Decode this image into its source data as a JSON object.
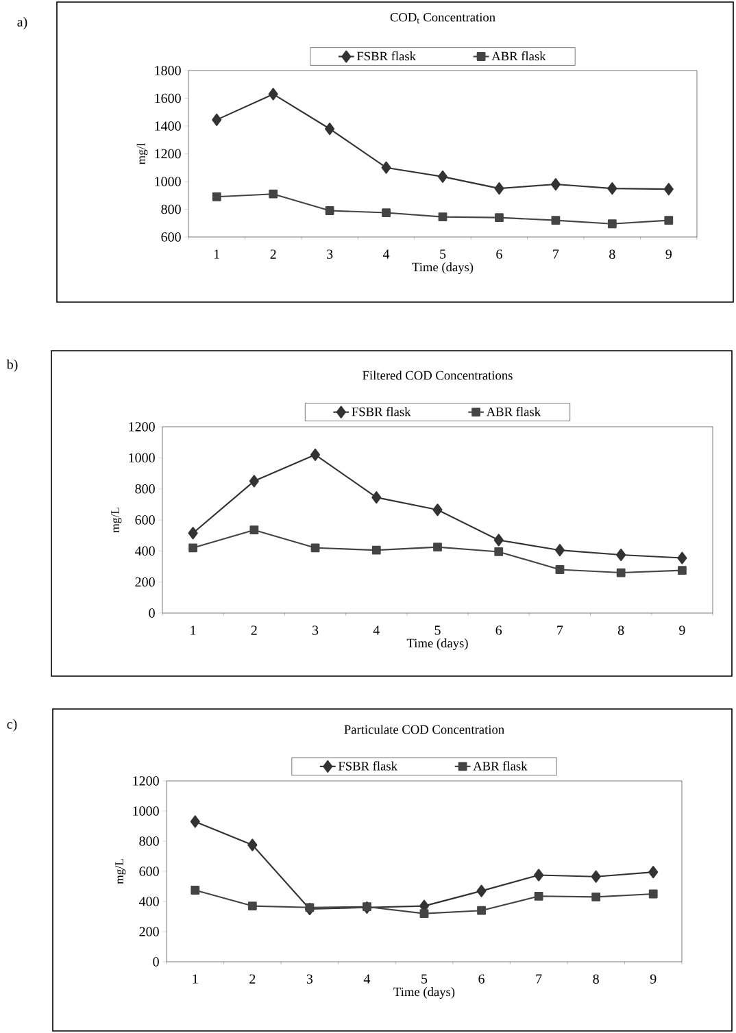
{
  "chart_data": [
    {
      "type": "line",
      "title": "COD$_{t}$ Concentration",
      "xlabel": "Time (days)",
      "ylabel": "mg/l",
      "annotations": [
        "a)"
      ],
      "categories": [
        "1",
        "2",
        "3",
        "4",
        "5",
        "6",
        "7",
        "8",
        "9"
      ],
      "series": [
        {
          "name": "FSBR flask",
          "color": "#333333",
          "marker": "diamond",
          "values": [
            1445,
            1630,
            1380,
            1100,
            1035,
            950,
            980,
            950,
            945
          ]
        },
        {
          "name": "ABR flask",
          "color": "#444444",
          "marker": "square",
          "values": [
            890,
            910,
            790,
            775,
            745,
            740,
            720,
            695,
            720
          ]
        }
      ],
      "ylim": [
        600,
        1800
      ],
      "yticks": [
        600,
        800,
        1000,
        1200,
        1400,
        1600,
        1800
      ],
      "grid": false,
      "legend": "top",
      "line_style": "solid"
    },
    {
      "type": "line",
      "title": "Filtered COD Concentrations",
      "xlabel": "Time (days)",
      "ylabel": "mg/L",
      "annotations": [
        "b)"
      ],
      "categories": [
        "1",
        "2",
        "3",
        "4",
        "5",
        "6",
        "7",
        "8",
        "9"
      ],
      "series": [
        {
          "name": "FSBR flask",
          "color": "#333333",
          "marker": "diamond",
          "values": [
            515,
            850,
            1020,
            745,
            665,
            470,
            405,
            375,
            355
          ]
        },
        {
          "name": "ABR flask",
          "color": "#444444",
          "marker": "square",
          "values": [
            420,
            535,
            420,
            405,
            425,
            395,
            280,
            260,
            275
          ]
        }
      ],
      "ylim": [
        0,
        1200
      ],
      "yticks": [
        0,
        200,
        400,
        600,
        800,
        1000,
        1200
      ],
      "grid": false,
      "legend": "top",
      "line_style": "solid"
    },
    {
      "type": "line",
      "title": "Particulate COD Concentration",
      "xlabel": "Time (days)",
      "ylabel": "mg/L",
      "annotations": [
        "c)"
      ],
      "categories": [
        "1",
        "2",
        "3",
        "4",
        "5",
        "6",
        "7",
        "8",
        "9"
      ],
      "series": [
        {
          "name": "FSBR flask",
          "color": "#333333",
          "marker": "diamond",
          "values": [
            930,
            775,
            350,
            360,
            370,
            470,
            575,
            565,
            595
          ]
        },
        {
          "name": "ABR flask",
          "color": "#444444",
          "marker": "square",
          "values": [
            475,
            370,
            360,
            365,
            320,
            340,
            435,
            430,
            450
          ]
        }
      ],
      "ylim": [
        0,
        1200
      ],
      "yticks": [
        0,
        200,
        400,
        600,
        800,
        1000,
        1200
      ],
      "grid": false,
      "legend": "top",
      "line_style": "solid"
    }
  ]
}
